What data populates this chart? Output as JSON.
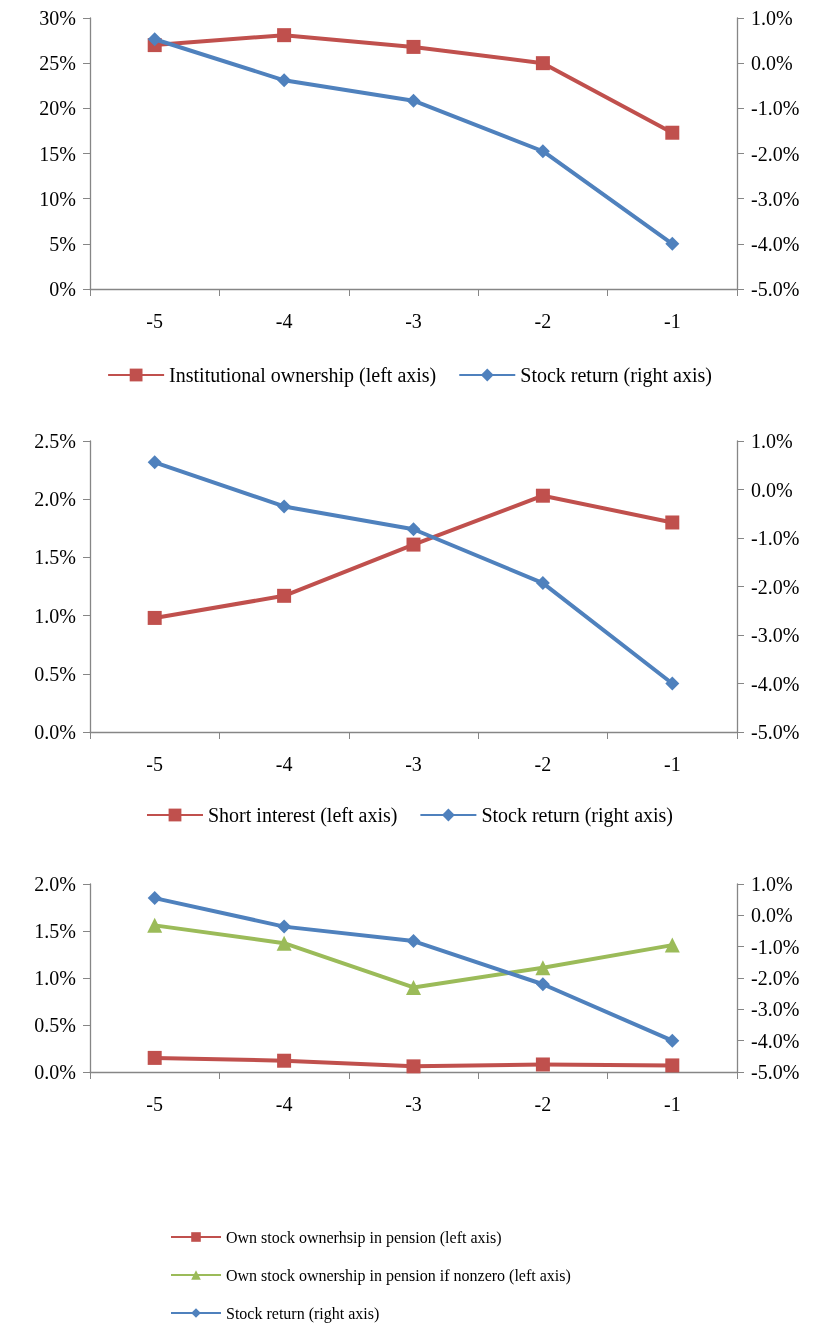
{
  "chart_data": [
    {
      "type": "line",
      "categories": [
        "-5",
        "-4",
        "-3",
        "-2",
        "-1"
      ],
      "ylim": [
        0,
        30
      ],
      "yticks": [
        {
          "value": 0,
          "label": "0%"
        },
        {
          "value": 5,
          "label": "5%"
        },
        {
          "value": 10,
          "label": "10%"
        },
        {
          "value": 15,
          "label": "15%"
        },
        {
          "value": 20,
          "label": "20%"
        },
        {
          "value": 25,
          "label": "25%"
        },
        {
          "value": 30,
          "label": "30%"
        }
      ],
      "y2lim": [
        -5,
        1
      ],
      "y2ticks": [
        {
          "value": -5,
          "label": "-5.0%"
        },
        {
          "value": -4,
          "label": "-4.0%"
        },
        {
          "value": -3,
          "label": "-3.0%"
        },
        {
          "value": -2,
          "label": "-2.0%"
        },
        {
          "value": -1,
          "label": "-1.0%"
        },
        {
          "value": 0,
          "label": "0.0%"
        },
        {
          "value": 1,
          "label": "1.0%"
        }
      ],
      "legend": "bottom",
      "grid": false,
      "series": [
        {
          "name": "Institutional ownership (left axis)",
          "color": "#c0504d",
          "marker": "square",
          "values": [
            27.0,
            28.1,
            26.8,
            25.0,
            17.3
          ]
        },
        {
          "name": "Stock return (right axis)",
          "color": "#4f81bd",
          "marker": "diamond",
          "axis": "y2",
          "values": [
            0.53,
            -0.38,
            -0.83,
            -1.95,
            -4.0
          ]
        }
      ]
    },
    {
      "type": "line",
      "categories": [
        "-5",
        "-4",
        "-3",
        "-2",
        "-1"
      ],
      "ylim": [
        0,
        2.5
      ],
      "yticks": [
        {
          "value": 0,
          "label": "0.0%"
        },
        {
          "value": 0.5,
          "label": "0.5%"
        },
        {
          "value": 1,
          "label": "1.0%"
        },
        {
          "value": 1.5,
          "label": "1.5%"
        },
        {
          "value": 2,
          "label": "2.0%"
        },
        {
          "value": 2.5,
          "label": "2.5%"
        }
      ],
      "y2lim": [
        -5,
        1
      ],
      "y2ticks": [
        {
          "value": -5,
          "label": "-5.0%"
        },
        {
          "value": -4,
          "label": "-4.0%"
        },
        {
          "value": -3,
          "label": "-3.0%"
        },
        {
          "value": -2,
          "label": "-2.0%"
        },
        {
          "value": -1,
          "label": "-1.0%"
        },
        {
          "value": 0,
          "label": "0.0%"
        },
        {
          "value": 1,
          "label": "1.0%"
        }
      ],
      "legend": "bottom",
      "grid": false,
      "series": [
        {
          "name": "Short interest (left axis)",
          "color": "#c0504d",
          "marker": "square",
          "values": [
            0.98,
            1.17,
            1.61,
            2.03,
            1.8
          ]
        },
        {
          "name": "Stock return (right axis)",
          "color": "#4f81bd",
          "marker": "diamond",
          "axis": "y2",
          "values": [
            0.56,
            -0.35,
            -0.82,
            -1.93,
            -4.0
          ]
        }
      ]
    },
    {
      "type": "line",
      "categories": [
        "-5",
        "-4",
        "-3",
        "-2",
        "-1"
      ],
      "ylim": [
        0,
        2
      ],
      "yticks": [
        {
          "value": 0,
          "label": "0.0%"
        },
        {
          "value": 0.5,
          "label": "0.5%"
        },
        {
          "value": 1,
          "label": "1.0%"
        },
        {
          "value": 1.5,
          "label": "1.5%"
        },
        {
          "value": 2,
          "label": "2.0%"
        }
      ],
      "y2lim": [
        -5,
        1
      ],
      "y2ticks": [
        {
          "value": -5,
          "label": "-5.0%"
        },
        {
          "value": -4,
          "label": "-4.0%"
        },
        {
          "value": -3,
          "label": "-3.0%"
        },
        {
          "value": -2,
          "label": "-2.0%"
        },
        {
          "value": -1,
          "label": "-1.0%"
        },
        {
          "value": 0,
          "label": "0.0%"
        },
        {
          "value": 1,
          "label": "1.0%"
        }
      ],
      "legend": "bottom",
      "grid": false,
      "series": [
        {
          "name": "Own stock ownerhsip in pension (left axis)",
          "color": "#c0504d",
          "marker": "square",
          "values": [
            0.15,
            0.12,
            0.06,
            0.08,
            0.07
          ]
        },
        {
          "name": "Own stock ownership in pension if nonzero (left axis)",
          "color": "#9bbb59",
          "marker": "triangle",
          "values": [
            1.56,
            1.37,
            0.9,
            1.11,
            1.35
          ]
        },
        {
          "name": "Stock return (right axis)",
          "color": "#4f81bd",
          "marker": "diamond",
          "axis": "y2",
          "values": [
            0.55,
            -0.36,
            -0.82,
            -2.2,
            -4.0
          ]
        }
      ]
    }
  ]
}
